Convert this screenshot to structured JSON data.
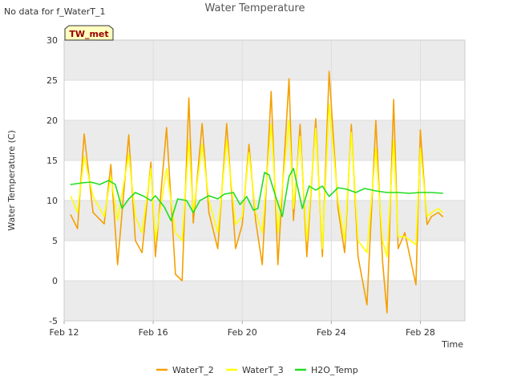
{
  "note": "No data for f_WaterT_1",
  "badge": "TW_met",
  "colors": {
    "WaterT_2": "#f5a000",
    "WaterT_3": "#ffff00",
    "H2O_Temp": "#22dd22",
    "band": "#ebebeb",
    "badge_bg": "#ffffc0",
    "badge_text": "#990000"
  },
  "chart_data": {
    "type": "line",
    "title": "Water Temperature",
    "xlabel": "Time",
    "ylabel": "Water Temperature (C)",
    "ylim": [
      -5,
      30
    ],
    "xlim_days": [
      0,
      18
    ],
    "y_ticks": [
      -5,
      0,
      5,
      10,
      15,
      20,
      25,
      30
    ],
    "x_ticks": [
      {
        "day": 0,
        "label": "Feb 12"
      },
      {
        "day": 4,
        "label": "Feb 16"
      },
      {
        "day": 8,
        "label": "Feb 20"
      },
      {
        "day": 12,
        "label": "Feb 24"
      },
      {
        "day": 16,
        "label": "Feb 28"
      }
    ],
    "legend_position": "bottom",
    "series": [
      {
        "name": "WaterT_2",
        "x": [
          0.3,
          0.6,
          0.9,
          1.3,
          1.8,
          2.1,
          2.4,
          2.9,
          3.2,
          3.5,
          3.9,
          4.1,
          4.6,
          5.0,
          5.3,
          5.6,
          5.8,
          6.2,
          6.5,
          6.9,
          7.3,
          7.7,
          8.0,
          8.3,
          8.6,
          8.9,
          9.3,
          9.6,
          10.1,
          10.3,
          10.6,
          10.9,
          11.3,
          11.6,
          11.9,
          12.3,
          12.6,
          12.9,
          13.2,
          13.6,
          14.0,
          14.3,
          14.5,
          14.8,
          15.0,
          15.3,
          15.8,
          16.0,
          16.3,
          16.5,
          16.8,
          17.0
        ],
        "y": [
          8.2,
          6.5,
          18.3,
          8.5,
          7.1,
          14.5,
          2.0,
          18.2,
          5.0,
          3.5,
          14.8,
          3.0,
          19.1,
          0.8,
          0.0,
          22.8,
          7.2,
          19.6,
          8.5,
          4.0,
          19.6,
          4.0,
          7.0,
          17.0,
          7.5,
          2.0,
          23.6,
          2.0,
          25.2,
          7.5,
          19.5,
          3.0,
          20.2,
          3.0,
          26.1,
          9.0,
          3.5,
          19.5,
          3.0,
          -3.0,
          20.0,
          2.5,
          -4.0,
          22.6,
          4.0,
          6.0,
          -0.5,
          18.8,
          7.0,
          8.0,
          8.5,
          8.0
        ]
      },
      {
        "name": "WaterT_3",
        "x": [
          0.3,
          0.6,
          0.9,
          1.3,
          1.8,
          2.1,
          2.4,
          2.9,
          3.2,
          3.5,
          3.9,
          4.1,
          4.6,
          5.0,
          5.3,
          5.6,
          5.8,
          6.2,
          6.5,
          6.9,
          7.3,
          7.7,
          8.0,
          8.3,
          8.6,
          8.9,
          9.3,
          9.6,
          10.1,
          10.3,
          10.6,
          10.9,
          11.3,
          11.6,
          11.9,
          12.3,
          12.6,
          12.9,
          13.2,
          13.6,
          14.0,
          14.3,
          14.5,
          14.8,
          15.0,
          15.3,
          15.8,
          16.0,
          16.3,
          16.5,
          16.8,
          17.0
        ],
        "y": [
          10.5,
          8.5,
          15.5,
          10.5,
          8.0,
          13.0,
          7.5,
          15.8,
          8.0,
          6.0,
          14.0,
          5.0,
          14.0,
          6.0,
          5.0,
          17.5,
          8.5,
          17.0,
          10.0,
          6.0,
          17.5,
          7.0,
          8.0,
          16.0,
          8.5,
          6.0,
          19.5,
          6.0,
          20.0,
          9.0,
          18.0,
          5.0,
          19.0,
          4.0,
          22.0,
          10.0,
          5.0,
          18.5,
          5.0,
          3.5,
          16.5,
          5.0,
          3.0,
          17.5,
          5.5,
          5.5,
          4.5,
          16.5,
          8.0,
          8.5,
          9.0,
          8.5
        ]
      },
      {
        "name": "H2O_Temp",
        "x": [
          0.3,
          0.8,
          1.2,
          1.6,
          2.0,
          2.3,
          2.6,
          2.9,
          3.2,
          3.6,
          3.9,
          4.1,
          4.5,
          4.8,
          5.1,
          5.5,
          5.8,
          6.1,
          6.5,
          6.9,
          7.2,
          7.6,
          7.9,
          8.2,
          8.5,
          8.7,
          9.0,
          9.2,
          9.5,
          9.8,
          10.1,
          10.3,
          10.7,
          11.0,
          11.3,
          11.6,
          11.9,
          12.3,
          12.7,
          13.1,
          13.5,
          14.0,
          14.5,
          15.0,
          15.5,
          16.0,
          16.5,
          17.0
        ],
        "y": [
          12.0,
          12.2,
          12.3,
          12.0,
          12.5,
          12.0,
          9.0,
          10.2,
          11.0,
          10.5,
          10.0,
          10.6,
          9.2,
          7.5,
          10.2,
          10.0,
          8.5,
          10.0,
          10.6,
          10.2,
          10.8,
          11.0,
          9.5,
          10.5,
          8.8,
          9.0,
          13.5,
          13.2,
          10.5,
          8.0,
          13.0,
          14.0,
          9.0,
          11.8,
          11.3,
          11.8,
          10.5,
          11.6,
          11.4,
          11.0,
          11.5,
          11.2,
          11.0,
          11.0,
          10.9,
          11.0,
          11.0,
          10.9
        ]
      }
    ]
  }
}
